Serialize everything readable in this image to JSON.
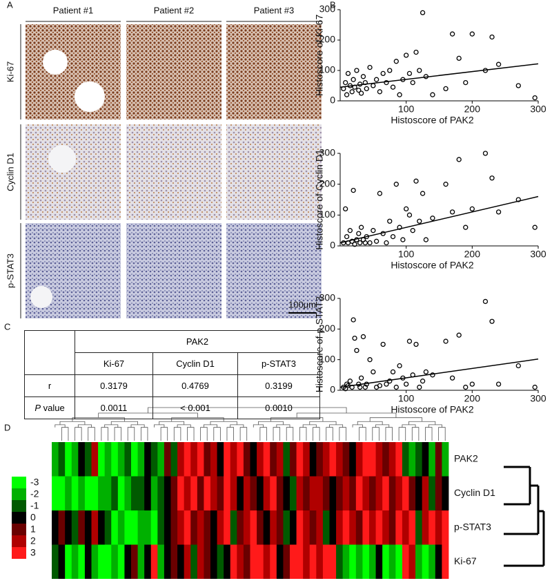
{
  "panel_labels": [
    "A",
    "B",
    "C",
    "D"
  ],
  "ihc": {
    "patients": [
      "Patient #1",
      "Patient #2",
      "Patient #3"
    ],
    "markers": [
      "Ki-67",
      "Cyclin D1",
      "p-STAT3"
    ],
    "scale_bar": "100μm"
  },
  "chart_data": [
    {
      "type": "scatter",
      "xlabel": "Histoscore of PAK2",
      "ylabel": "Histoscore of Ki-67",
      "xlim": [
        0,
        300
      ],
      "xticks": [
        100,
        200,
        300
      ],
      "ylim": [
        0,
        300
      ],
      "yticks": [
        0,
        100,
        200,
        300
      ],
      "x": [
        5,
        8,
        10,
        12,
        15,
        18,
        20,
        22,
        25,
        28,
        30,
        32,
        35,
        38,
        40,
        45,
        50,
        55,
        60,
        65,
        70,
        75,
        80,
        85,
        90,
        95,
        100,
        105,
        110,
        115,
        120,
        125,
        130,
        140,
        160,
        170,
        180,
        190,
        200,
        220,
        230,
        240,
        270,
        295
      ],
      "y": [
        40,
        60,
        20,
        90,
        50,
        30,
        70,
        45,
        100,
        35,
        55,
        25,
        80,
        60,
        40,
        110,
        50,
        70,
        30,
        90,
        60,
        100,
        45,
        130,
        20,
        70,
        150,
        90,
        60,
        160,
        100,
        290,
        80,
        20,
        40,
        220,
        140,
        60,
        220,
        100,
        210,
        120,
        50,
        10
      ],
      "trend": {
        "x": [
          0,
          300
        ],
        "y": [
          45,
          122
        ]
      }
    },
    {
      "type": "scatter",
      "xlabel": "Histoscore of PAK2",
      "ylabel": "Histoscore of Cyclin D1",
      "xlim": [
        0,
        300
      ],
      "xticks": [
        100,
        200,
        300
      ],
      "ylim": [
        0,
        300
      ],
      "yticks": [
        0,
        100,
        200,
        300
      ],
      "x": [
        5,
        8,
        10,
        12,
        15,
        18,
        20,
        22,
        25,
        28,
        30,
        32,
        35,
        38,
        40,
        45,
        50,
        55,
        60,
        65,
        70,
        75,
        80,
        85,
        90,
        95,
        100,
        105,
        110,
        115,
        120,
        125,
        130,
        140,
        160,
        170,
        180,
        190,
        200,
        220,
        230,
        240,
        270,
        295
      ],
      "y": [
        10,
        120,
        30,
        10,
        50,
        15,
        180,
        5,
        20,
        40,
        10,
        60,
        20,
        10,
        30,
        10,
        50,
        15,
        170,
        40,
        10,
        80,
        30,
        200,
        60,
        20,
        120,
        100,
        50,
        210,
        80,
        170,
        20,
        90,
        200,
        110,
        280,
        60,
        120,
        300,
        220,
        110,
        150,
        60
      ],
      "trend": {
        "x": [
          0,
          300
        ],
        "y": [
          10,
          160
        ]
      }
    },
    {
      "type": "scatter",
      "xlabel": "Histoscore of PAK2",
      "ylabel": "Histoscore of p-STAT3",
      "xlim": [
        0,
        300
      ],
      "xticks": [
        100,
        200,
        300
      ],
      "ylim": [
        0,
        300
      ],
      "yticks": [
        0,
        100,
        200,
        300
      ],
      "x": [
        5,
        8,
        10,
        12,
        15,
        18,
        20,
        22,
        25,
        28,
        30,
        32,
        35,
        38,
        40,
        45,
        50,
        55,
        60,
        65,
        70,
        75,
        80,
        85,
        90,
        95,
        100,
        105,
        110,
        115,
        120,
        125,
        130,
        140,
        160,
        170,
        180,
        190,
        200,
        220,
        230,
        240,
        270,
        295
      ],
      "y": [
        10,
        5,
        20,
        15,
        30,
        10,
        230,
        170,
        130,
        20,
        10,
        40,
        175,
        10,
        20,
        100,
        60,
        10,
        15,
        150,
        20,
        30,
        60,
        10,
        80,
        40,
        20,
        160,
        50,
        150,
        10,
        30,
        60,
        50,
        160,
        40,
        180,
        10,
        20,
        290,
        225,
        20,
        80,
        10
      ],
      "trend": {
        "x": [
          0,
          300
        ],
        "y": [
          10,
          102
        ]
      }
    }
  ],
  "table": {
    "header": "PAK2",
    "columns": [
      "Ki-67",
      "Cyclin D1",
      "p-STAT3"
    ],
    "rows": [
      [
        "r",
        "0.3179",
        "0.4769",
        "0.3199"
      ],
      [
        "P value",
        "0.0011",
        "< 0.001",
        "0.0010"
      ]
    ]
  },
  "heatmap": {
    "rows": [
      "PAK2",
      "Cyclin D1",
      "p-STAT3",
      "Ki-67"
    ],
    "legend": {
      "values": [
        -3,
        -2,
        -1,
        0,
        1,
        2,
        3
      ],
      "colors": [
        "#00ff00",
        "#00b000",
        "#005a00",
        "#000000",
        "#6a0000",
        "#b00000",
        "#ff1a1a"
      ]
    },
    "matrix": [
      [
        -2,
        -1,
        -3,
        -2,
        0,
        -1,
        2,
        -3,
        -2,
        -3,
        -2,
        -1,
        -3,
        -2,
        0,
        -1,
        -2,
        1,
        -1,
        2,
        3,
        2,
        3,
        1,
        2,
        0,
        3,
        2,
        3,
        1,
        0,
        2,
        3,
        1,
        2,
        -1,
        1,
        3,
        2,
        0,
        1,
        2,
        3,
        2,
        1,
        0,
        2,
        3,
        3,
        2,
        1,
        2,
        3,
        -1,
        -2,
        -1,
        0,
        -2,
        1,
        -2
      ],
      [
        -3,
        -3,
        -2,
        -3,
        -2,
        -3,
        -3,
        -2,
        -2,
        -1,
        -3,
        -2,
        -1,
        -1,
        0,
        -2,
        -1,
        0,
        1,
        3,
        2,
        3,
        1,
        3,
        2,
        1,
        3,
        2,
        0,
        2,
        1,
        0,
        2,
        3,
        1,
        0,
        -1,
        2,
        1,
        2,
        2,
        1,
        0,
        1,
        2,
        1,
        3,
        2,
        1,
        2,
        3,
        1,
        2,
        3,
        1,
        0,
        2,
        -1,
        1,
        0
      ],
      [
        0,
        1,
        0,
        -1,
        1,
        0,
        2,
        0,
        -1,
        -3,
        -2,
        -3,
        -3,
        -2,
        -2,
        -3,
        -1,
        0,
        1,
        2,
        3,
        1,
        2,
        1,
        0,
        2,
        3,
        -1,
        1,
        2,
        3,
        1,
        0,
        2,
        1,
        -1,
        0,
        3,
        2,
        1,
        2,
        -1,
        0,
        2,
        3,
        2,
        1,
        3,
        2,
        3,
        2,
        1,
        3,
        2,
        3,
        -1,
        2,
        3,
        2,
        3
      ],
      [
        -1,
        0,
        -3,
        -2,
        -3,
        0,
        -2,
        -3,
        -3,
        -2,
        -3,
        0,
        1,
        -2,
        0,
        3,
        -2,
        0,
        1,
        0,
        2,
        -1,
        2,
        1,
        0,
        -1,
        0,
        3,
        2,
        1,
        3,
        3,
        2,
        3,
        0,
        1,
        3,
        3,
        2,
        3,
        2,
        3,
        3,
        -1,
        -2,
        -3,
        -2,
        -3,
        -2,
        0,
        -3,
        -2,
        -3,
        3,
        2,
        -2,
        -3,
        -2,
        0,
        3
      ]
    ]
  }
}
